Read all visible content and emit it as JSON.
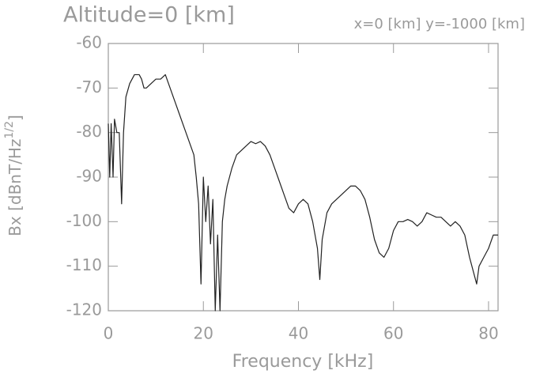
{
  "chart_data": {
    "type": "line",
    "title": "Altitude=0 [km]",
    "subtitle": "x=0 [km] y=-1000 [km]",
    "xlabel": "Frequency [kHz]",
    "ylabel": {
      "text": "Bx [dBnT/Hz",
      "superscript": "1/2",
      "suffix": "]"
    },
    "xlim": [
      0,
      82
    ],
    "ylim": [
      -120,
      -60
    ],
    "xticks": [
      0,
      20,
      40,
      60,
      80
    ],
    "yticks": [
      -120,
      -110,
      -100,
      -90,
      -80,
      -70,
      -60
    ],
    "color": "#222222",
    "x": [
      0,
      0.3,
      0.6,
      1,
      1.3,
      1.8,
      2.3,
      2.8,
      3.2,
      3.7,
      4.5,
      5.5,
      6.5,
      7,
      7.5,
      8,
      9,
      10,
      11,
      12,
      13,
      14,
      15,
      16,
      17,
      18,
      18.5,
      19,
      19.5,
      20,
      20.5,
      21,
      21.5,
      22,
      22.5,
      23,
      23.5,
      24,
      24.5,
      25,
      26,
      27,
      28,
      29,
      30,
      31,
      32,
      33,
      34,
      35,
      36,
      37,
      38,
      39,
      40,
      41,
      42,
      43,
      44,
      44.5,
      45,
      46,
      47,
      48,
      49,
      50,
      51,
      52,
      53,
      54,
      55,
      56,
      57,
      58,
      59,
      60,
      61,
      62,
      63,
      64,
      65,
      66,
      67,
      68,
      69,
      70,
      71,
      72,
      73,
      74,
      75,
      76,
      77,
      77.5,
      78,
      79,
      80,
      81,
      82
    ],
    "values": [
      -78,
      -90,
      -78,
      -90,
      -77,
      -80,
      -80,
      -96,
      -80,
      -72,
      -69,
      -67,
      -67,
      -68,
      -70,
      -70,
      -69,
      -68,
      -68,
      -67,
      -70,
      -73,
      -76,
      -79,
      -82,
      -85,
      -90,
      -96,
      -114,
      -90,
      -100,
      -92,
      -105,
      -95,
      -120,
      -103,
      -120,
      -100,
      -95,
      -92,
      -88,
      -85,
      -84,
      -83,
      -82,
      -82.5,
      -82,
      -83,
      -85,
      -88,
      -91,
      -94,
      -97,
      -98,
      -96,
      -95,
      -96,
      -100,
      -106,
      -113,
      -104,
      -98,
      -96,
      -95,
      -94,
      -93,
      -92,
      -92,
      -93,
      -95,
      -99,
      -104,
      -107,
      -108,
      -106,
      -102,
      -100,
      -100,
      -99.5,
      -100,
      -101,
      -100,
      -98,
      -98.5,
      -99,
      -99,
      -100,
      -101,
      -100,
      -101,
      -103,
      -108,
      -112,
      -114,
      -110,
      -108,
      -106,
      -103,
      -103
    ]
  }
}
